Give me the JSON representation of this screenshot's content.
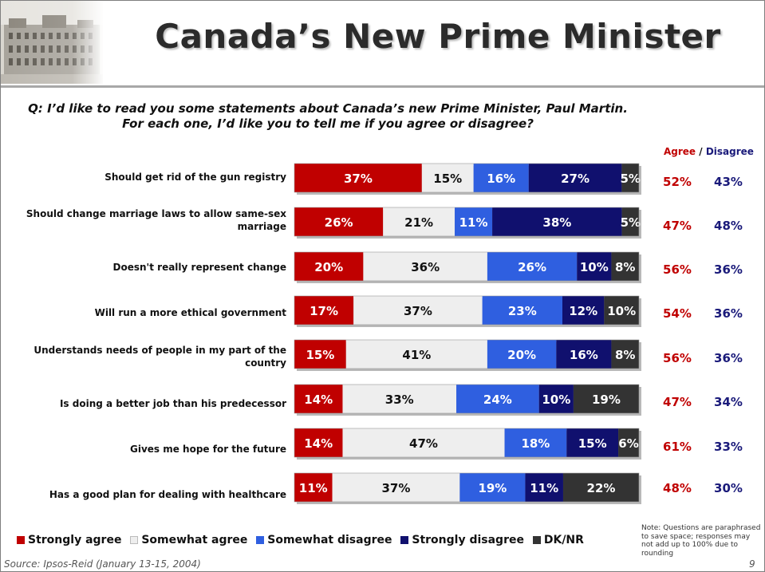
{
  "header": {
    "title": "Canada’s New Prime Minister"
  },
  "question": "Q: I’d like to read you some statements about Canada’s new Prime Minister, Paul Martin. For each one, I’d like you to tell me if you agree or disagree?",
  "summary_header": {
    "agree": "Agree",
    "separator": " / ",
    "disagree": "Disagree"
  },
  "rows": [
    {
      "label": "Should get rid of the gun registry",
      "agree": "52%",
      "disagree": "43%"
    },
    {
      "label": "Should change marriage laws to allow same-sex marriage",
      "agree": "47%",
      "disagree": "48%"
    },
    {
      "label": "Doesn't really represent change",
      "agree": "56%",
      "disagree": "36%"
    },
    {
      "label": "Will run a more ethical government",
      "agree": "54%",
      "disagree": "36%"
    },
    {
      "label": "Understands needs of people in my part of the country",
      "agree": "56%",
      "disagree": "36%"
    },
    {
      "label": "Is doing a better job than his predecessor",
      "agree": "47%",
      "disagree": "34%"
    },
    {
      "label": "Gives me hope for the future",
      "agree": "61%",
      "disagree": "33%"
    },
    {
      "label": "Has a good plan for dealing with healthcare",
      "agree": "48%",
      "disagree": "30%"
    }
  ],
  "colors": {
    "strongly_agree": "#c00000",
    "somewhat_agree": "#eeeeee",
    "somewhat_disagree": "#2f5fe0",
    "strongly_disagree": "#10106e",
    "dk_nr": "#333333",
    "agree_text": "#c00000",
    "disagree_text": "#1a1a7a"
  },
  "chart_data": {
    "type": "bar",
    "orientation": "horizontal",
    "stacked": true,
    "categories": [
      "Should get rid of the gun registry",
      "Should change marriage laws to allow same-sex marriage",
      "Doesn't really represent change",
      "Will run a more ethical government",
      "Understands needs of people in my part of the country",
      "Is doing a better job than his predecessor",
      "Gives me hope for the future",
      "Has a good plan for dealing with healthcare"
    ],
    "series": [
      {
        "name": "Strongly agree",
        "values": [
          37,
          26,
          20,
          17,
          15,
          14,
          14,
          11
        ]
      },
      {
        "name": "Somewhat agree",
        "values": [
          15,
          21,
          36,
          37,
          41,
          33,
          47,
          37
        ]
      },
      {
        "name": "Somewhat disagree",
        "values": [
          16,
          11,
          26,
          23,
          20,
          24,
          18,
          19
        ]
      },
      {
        "name": "Strongly disagree",
        "values": [
          27,
          38,
          10,
          12,
          16,
          10,
          15,
          11
        ]
      },
      {
        "name": "DK/NR",
        "values": [
          5,
          5,
          8,
          10,
          8,
          19,
          6,
          22
        ]
      }
    ],
    "value_suffix": "%",
    "legend_position": "bottom"
  },
  "note": "Note: Questions are paraphrased to save space; responses may not add up to 100% due to rounding",
  "source": "Source: Ipsos-Reid (January 13-15, 2004)",
  "page_number": "9"
}
